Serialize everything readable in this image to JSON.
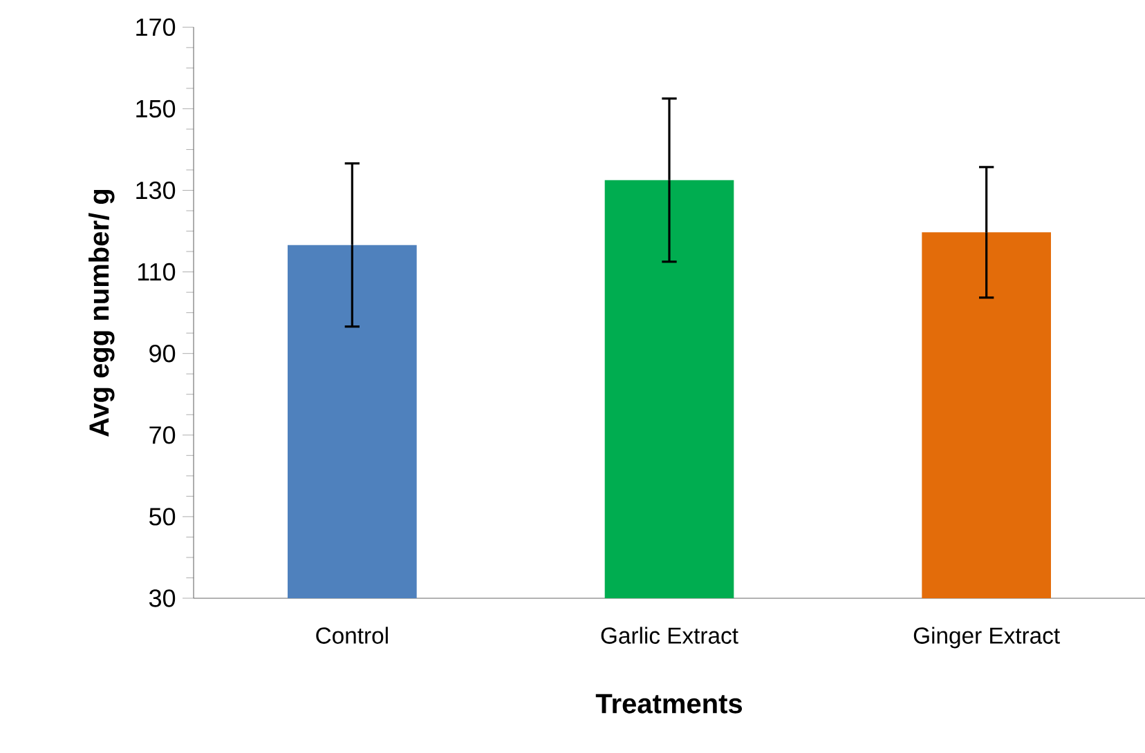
{
  "chart_data": {
    "type": "bar",
    "categories": [
      "Control",
      "Garlic Extract",
      "Ginger Extract"
    ],
    "values": [
      116.6,
      132.5,
      119.7
    ],
    "errors": [
      20,
      20,
      16
    ],
    "colors": [
      "#4f81bd",
      "#00ad50",
      "#e36c0a"
    ],
    "xlabel": "Treatments",
    "ylabel": "Avg egg number/ g",
    "ylim": [
      30,
      170
    ],
    "yticks": [
      30,
      50,
      70,
      90,
      110,
      130,
      150,
      170
    ],
    "grid": false
  }
}
